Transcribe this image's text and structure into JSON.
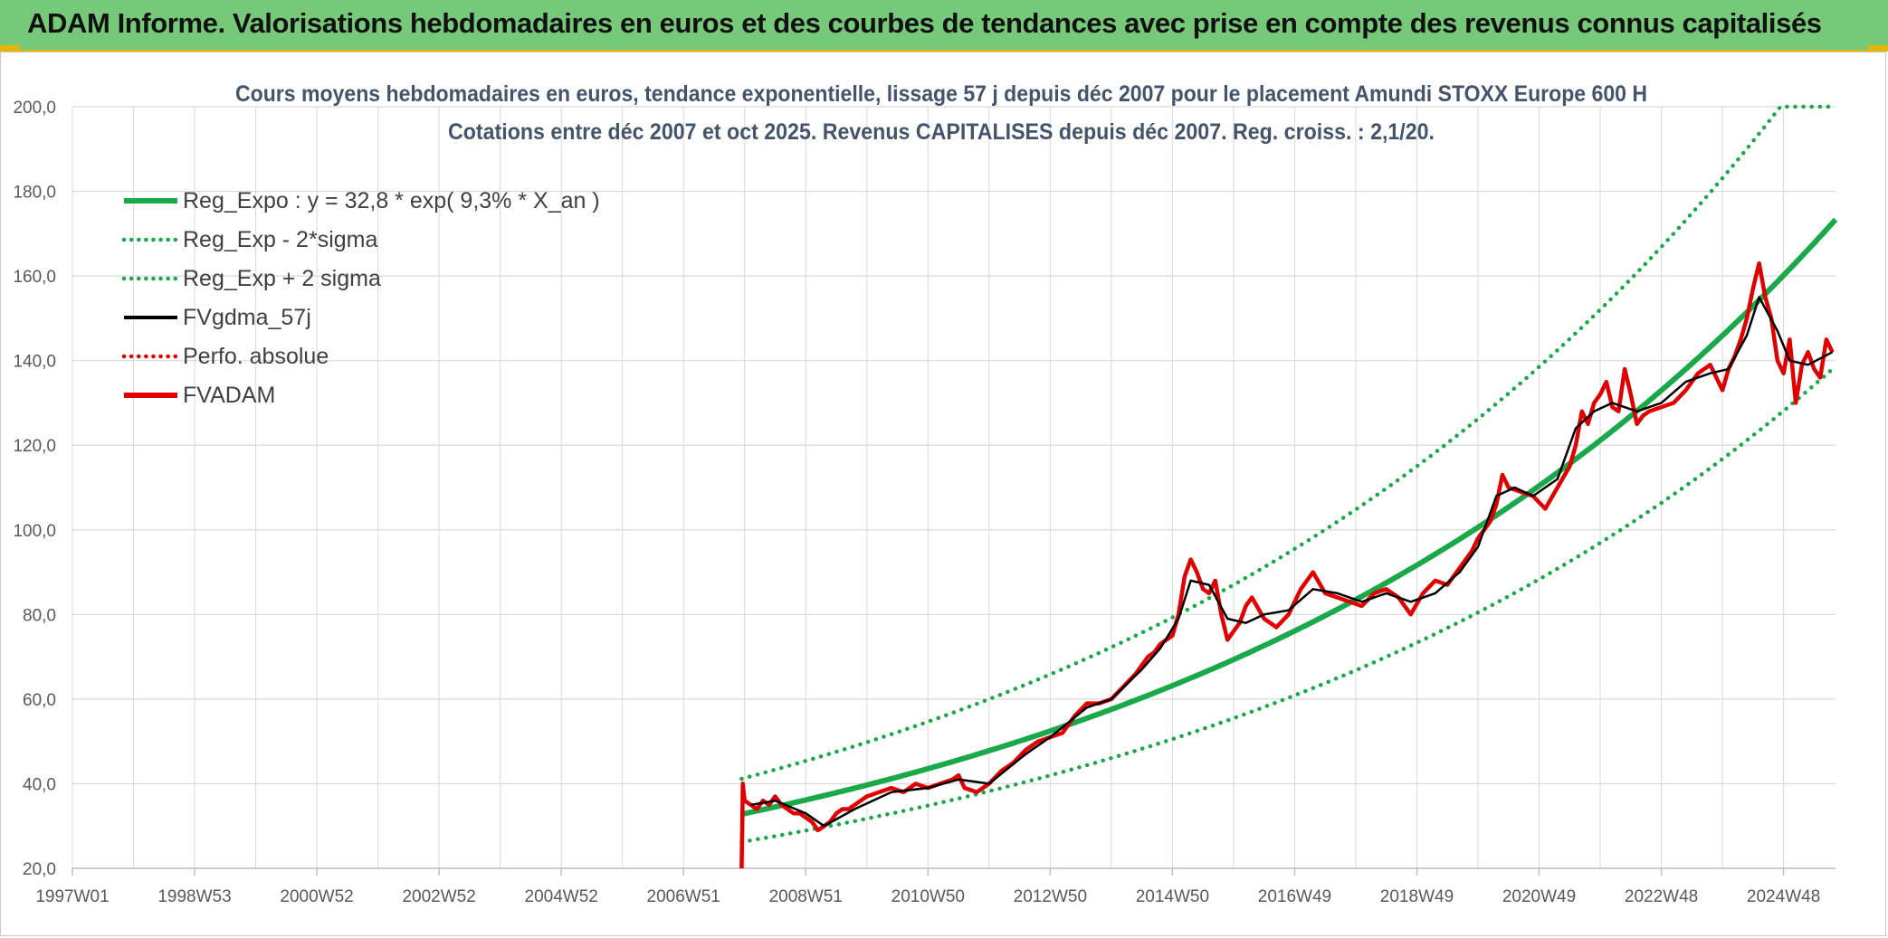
{
  "header": {
    "title": "ADAM Informe. Valorisations hebdomadaires en euros et des courbes de tendances avec prise en compte des revenus connus capitalisés"
  },
  "colors": {
    "banner": "#77c97a",
    "banner_accent": "#e8b400",
    "reg_expo": "#19a84a",
    "gdma": "#000000",
    "perfo": "#e00000",
    "fvadam": "#e00000",
    "grid": "#d9d9d9",
    "title_text": "#44546a"
  },
  "chart_data": {
    "type": "line",
    "title": "Cours moyens hebdomadaires en euros, tendance exponentielle, lissage 57 j depuis déc 2007 pour le placement Amundi STOXX Europe 600 H",
    "subtitle": "Cotations entre déc 2007 et oct 2025. Revenus CAPITALISES depuis déc 2007. Reg. croiss. : 2,1/20.",
    "xlabel": "",
    "ylabel": "",
    "x_range": [
      1997.0,
      2025.85
    ],
    "ylim": [
      20,
      200
    ],
    "y_ticks": [
      20,
      40,
      60,
      80,
      100,
      120,
      140,
      160,
      180,
      200
    ],
    "y_tick_labels": [
      "20,0",
      "40,0",
      "60,0",
      "80,0",
      "100,0",
      "120,0",
      "140,0",
      "160,0",
      "180,0",
      "200,0"
    ],
    "x_ticks": [
      1997.0,
      1999.0,
      2001.0,
      2003.0,
      2005.0,
      2007.0,
      2009.0,
      2011.0,
      2013.0,
      2015.0,
      2017.0,
      2019.0,
      2021.0,
      2023.0,
      2025.0
    ],
    "x_tick_labels": [
      "1997W01",
      "1998W53",
      "2000W52",
      "2002W52",
      "2004W52",
      "2006W51",
      "2008W51",
      "2010W50",
      "2012W50",
      "2014W50",
      "2016W49",
      "2018W49",
      "2020W49",
      "2022W48",
      "2024W48"
    ],
    "grid": true,
    "legend_position": "top-left",
    "legend": [
      {
        "label": "Reg_Expo : y = 32,8 * exp( 9,3% *  X_an )",
        "color": "#19a84a",
        "style": "solid-thick"
      },
      {
        "label": "Reg_Exp - 2*sigma",
        "color": "#19a84a",
        "style": "dotted"
      },
      {
        "label": "Reg_Exp + 2 sigma",
        "color": "#19a84a",
        "style": "dotted"
      },
      {
        "label": "FVgdma_57j",
        "color": "#000000",
        "style": "solid"
      },
      {
        "label": "Perfo. absolue",
        "color": "#e00000",
        "style": "dotted"
      },
      {
        "label": "FVADAM",
        "color": "#e00000",
        "style": "solid-thick"
      }
    ],
    "regression": {
      "a": 32.8,
      "rate": 0.093,
      "start_year": 2007.95,
      "end_year": 2025.85,
      "sigma_factor_upper": 1.255,
      "sigma_factor_lower": 0.8,
      "upper_cap": 200
    },
    "series": [
      {
        "name": "FVADAM",
        "x": [
          2007.95,
          2007.97,
          2008.0,
          2008.1,
          2008.2,
          2008.3,
          2008.4,
          2008.5,
          2008.6,
          2008.7,
          2008.8,
          2008.9,
          2009.0,
          2009.1,
          2009.2,
          2009.3,
          2009.4,
          2009.5,
          2009.6,
          2009.7,
          2009.8,
          2009.9,
          2010.0,
          2010.2,
          2010.4,
          2010.6,
          2010.8,
          2011.0,
          2011.2,
          2011.4,
          2011.5,
          2011.6,
          2011.8,
          2012.0,
          2012.2,
          2012.4,
          2012.6,
          2012.8,
          2013.0,
          2013.2,
          2013.4,
          2013.6,
          2013.8,
          2014.0,
          2014.2,
          2014.4,
          2014.5,
          2014.6,
          2014.7,
          2014.8,
          2015.0,
          2015.1,
          2015.2,
          2015.3,
          2015.4,
          2015.5,
          2015.6,
          2015.7,
          2015.8,
          2015.9,
          2016.0,
          2016.1,
          2016.2,
          2016.3,
          2016.5,
          2016.7,
          2016.9,
          2017.1,
          2017.3,
          2017.5,
          2017.7,
          2017.9,
          2018.1,
          2018.3,
          2018.5,
          2018.7,
          2018.9,
          2019.1,
          2019.3,
          2019.5,
          2019.7,
          2019.9,
          2020.0,
          2020.1,
          2020.2,
          2020.3,
          2020.4,
          2020.5,
          2020.7,
          2020.9,
          2021.1,
          2021.3,
          2021.5,
          2021.6,
          2021.7,
          2021.8,
          2021.9,
          2022.0,
          2022.1,
          2022.2,
          2022.3,
          2022.4,
          2022.5,
          2022.6,
          2022.7,
          2022.8,
          2023.0,
          2023.2,
          2023.4,
          2023.6,
          2023.8,
          2024.0,
          2024.1,
          2024.2,
          2024.3,
          2024.4,
          2024.5,
          2024.6,
          2024.7,
          2024.8,
          2024.9,
          2025.0,
          2025.1,
          2025.2,
          2025.3,
          2025.4,
          2025.5,
          2025.6,
          2025.7,
          2025.8
        ],
        "values": [
          20,
          40,
          36,
          35,
          34,
          36,
          35,
          37,
          35,
          34,
          33,
          33,
          32,
          31,
          29,
          30,
          31,
          33,
          34,
          34,
          35,
          36,
          37,
          38,
          39,
          38,
          40,
          39,
          40,
          41,
          42,
          39,
          38,
          40,
          43,
          45,
          48,
          50,
          51,
          52,
          56,
          59,
          59,
          60,
          63,
          66,
          68,
          70,
          71,
          73,
          75,
          80,
          89,
          93,
          90,
          86,
          85,
          88,
          80,
          74,
          76,
          78,
          82,
          84,
          79,
          77,
          80,
          86,
          90,
          85,
          84,
          83,
          82,
          85,
          86,
          84,
          80,
          85,
          88,
          87,
          91,
          95,
          98,
          100,
          102,
          106,
          113,
          110,
          109,
          108,
          105,
          110,
          115,
          120,
          128,
          125,
          130,
          132,
          135,
          129,
          128,
          138,
          132,
          125,
          127,
          128,
          129,
          130,
          133,
          137,
          139,
          133,
          138,
          141,
          145,
          150,
          157,
          163,
          155,
          150,
          140,
          137,
          145,
          130,
          139,
          142,
          138,
          136,
          145,
          142
        ],
        "color": "#e00000"
      },
      {
        "name": "FVgdma_57j",
        "x": [
          2008.1,
          2008.5,
          2009.0,
          2009.3,
          2009.8,
          2010.4,
          2011.0,
          2011.5,
          2012.0,
          2012.6,
          2013.0,
          2013.6,
          2014.0,
          2014.5,
          2014.8,
          2015.1,
          2015.3,
          2015.6,
          2015.9,
          2016.2,
          2016.5,
          2016.9,
          2017.3,
          2017.7,
          2018.1,
          2018.5,
          2018.9,
          2019.3,
          2019.7,
          2020.0,
          2020.3,
          2020.6,
          2020.9,
          2021.3,
          2021.6,
          2021.9,
          2022.2,
          2022.6,
          2023.0,
          2023.4,
          2023.8,
          2024.1,
          2024.4,
          2024.6,
          2024.9,
          2025.1,
          2025.4,
          2025.8
        ],
        "values": [
          35,
          36,
          33,
          30,
          34,
          38,
          39,
          41,
          40,
          47,
          51,
          58,
          60,
          67,
          72,
          79,
          88,
          87,
          79,
          78,
          80,
          81,
          86,
          85,
          83,
          85,
          83,
          85,
          90,
          96,
          108,
          110,
          108,
          112,
          124,
          128,
          130,
          128,
          130,
          135,
          137,
          138,
          146,
          155,
          147,
          140,
          139,
          142
        ],
        "color": "#000000"
      }
    ]
  }
}
